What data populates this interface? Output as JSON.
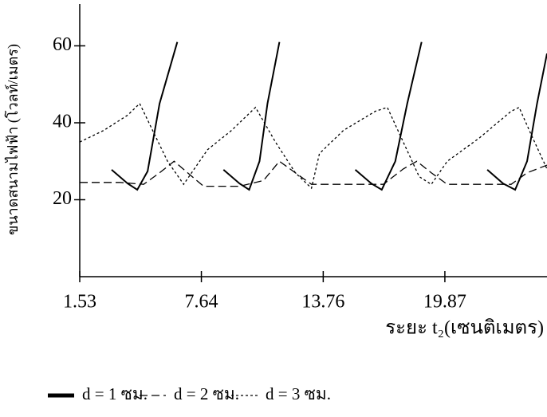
{
  "chart_data": {
    "type": "line",
    "y_label": "ขนาดสนามไฟฟ้า (โวลท์/เมตร)",
    "x_label": "ระยะ t₂(เซนติเมตร)",
    "xlim": [
      1.53,
      25.0
    ],
    "xticks": [
      1.53,
      7.64,
      13.76,
      19.87
    ],
    "ylim": [
      0,
      70
    ],
    "yticks": [
      20,
      40,
      60
    ],
    "legend": "bottom",
    "series": [
      {
        "name": "d = 1 ซม.",
        "color": "#000000",
        "line_style": "solid",
        "x": [
          3.13,
          3.94,
          4.42,
          4.94,
          5.54,
          6.43,
          null,
          8.75,
          9.56,
          10.04,
          10.56,
          10.96,
          11.56,
          null,
          15.37,
          16.18,
          16.7,
          17.38,
          17.98,
          18.7,
          null,
          22.0,
          22.8,
          23.4,
          24.0,
          24.5,
          25.0
        ],
        "values": [
          27.8,
          24.2,
          22.6,
          27.4,
          45,
          61,
          null,
          27.8,
          24.2,
          22.6,
          30,
          45,
          61,
          null,
          27.8,
          24.2,
          22.6,
          30,
          45,
          61,
          null,
          27.8,
          24.2,
          22.6,
          30,
          45,
          58
        ]
      },
      {
        "name": "d = 2 ซม.",
        "color": "#000000",
        "line_style": "long-dash",
        "x": [
          1.53,
          3.54,
          4.74,
          5.54,
          6.27,
          6.95,
          7.75,
          9.56,
          10.76,
          11.56,
          12.36,
          13.17,
          15.17,
          16.78,
          17.78,
          18.46,
          19.19,
          19.99,
          22.0,
          23.2,
          24.0,
          25.0
        ],
        "values": [
          24.5,
          24.5,
          24,
          27,
          30,
          27,
          23.5,
          23.5,
          25,
          30,
          27,
          24,
          24,
          24,
          28,
          30,
          27,
          24,
          24,
          24,
          27,
          29
        ]
      },
      {
        "name": "d = 3 ซม.",
        "color": "#000000",
        "line_style": "short-dash",
        "x": [
          1.53,
          2.73,
          3.94,
          4.54,
          5.94,
          6.75,
          7.95,
          9.15,
          10.36,
          11.36,
          12.36,
          13.17,
          13.57,
          14.77,
          16.38,
          16.98,
          17.78,
          18.58,
          19.19,
          19.99,
          21.59,
          23.2,
          23.6,
          24.2,
          25.0
        ],
        "values": [
          35,
          38,
          42,
          45,
          30,
          24,
          33,
          38,
          44,
          35,
          27,
          23,
          32,
          38,
          43,
          44,
          35,
          26,
          24,
          30,
          36,
          43,
          44,
          37,
          28
        ]
      }
    ]
  }
}
